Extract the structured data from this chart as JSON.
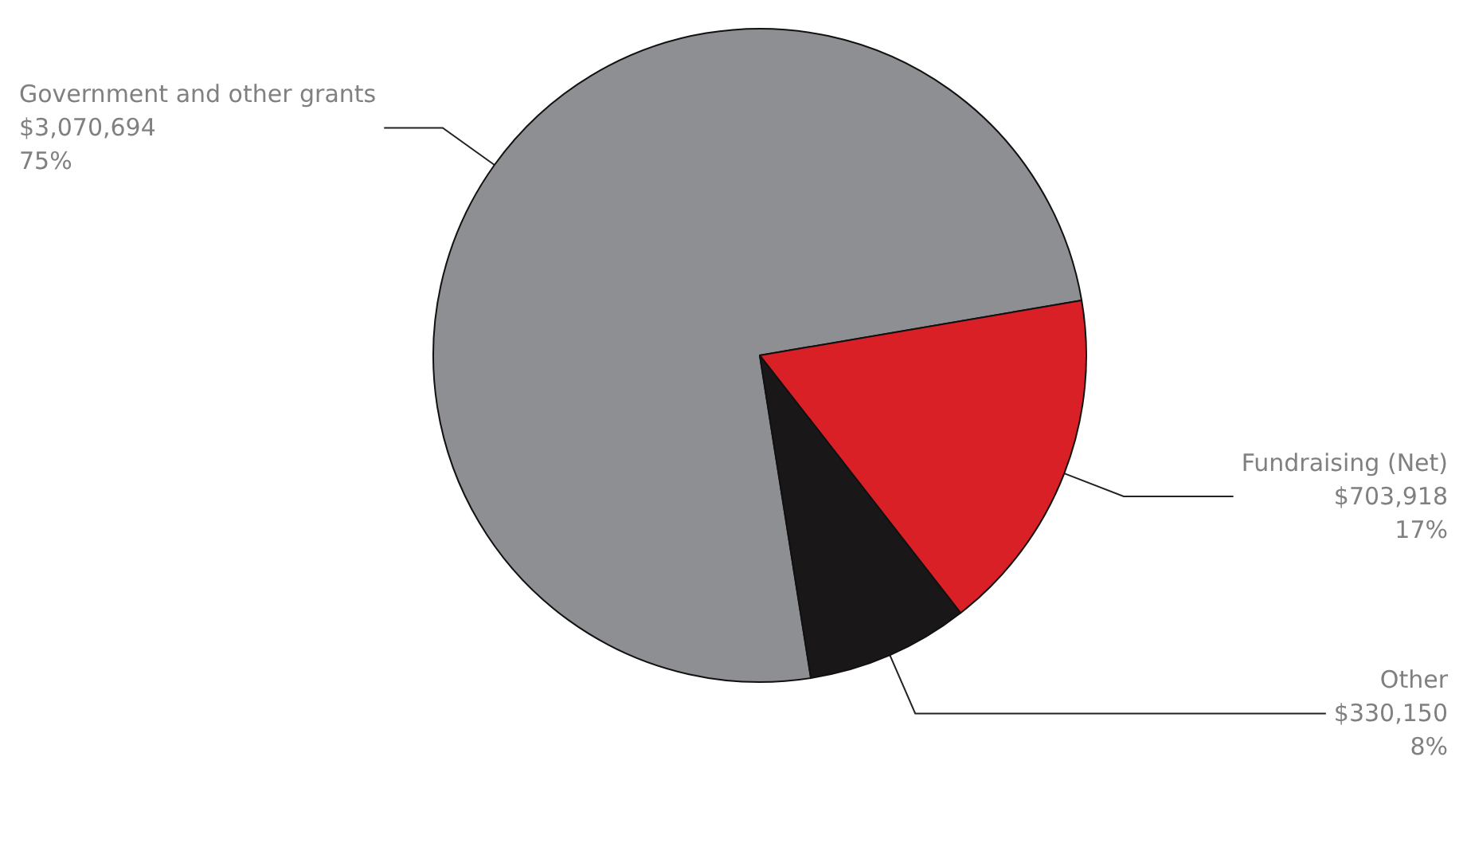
{
  "chart_data": {
    "type": "pie",
    "categories": [
      "Government and other grants",
      "Fundraising (Net)",
      "Other"
    ],
    "values": [
      3070694,
      703918,
      330150
    ],
    "value_labels": [
      "$3,070,694\n75%",
      "$703,918\n17%",
      "$330,150\n8%"
    ],
    "colors": [
      "#8e8f92",
      "#da2027",
      "#1a1718"
    ],
    "legend": false
  }
}
